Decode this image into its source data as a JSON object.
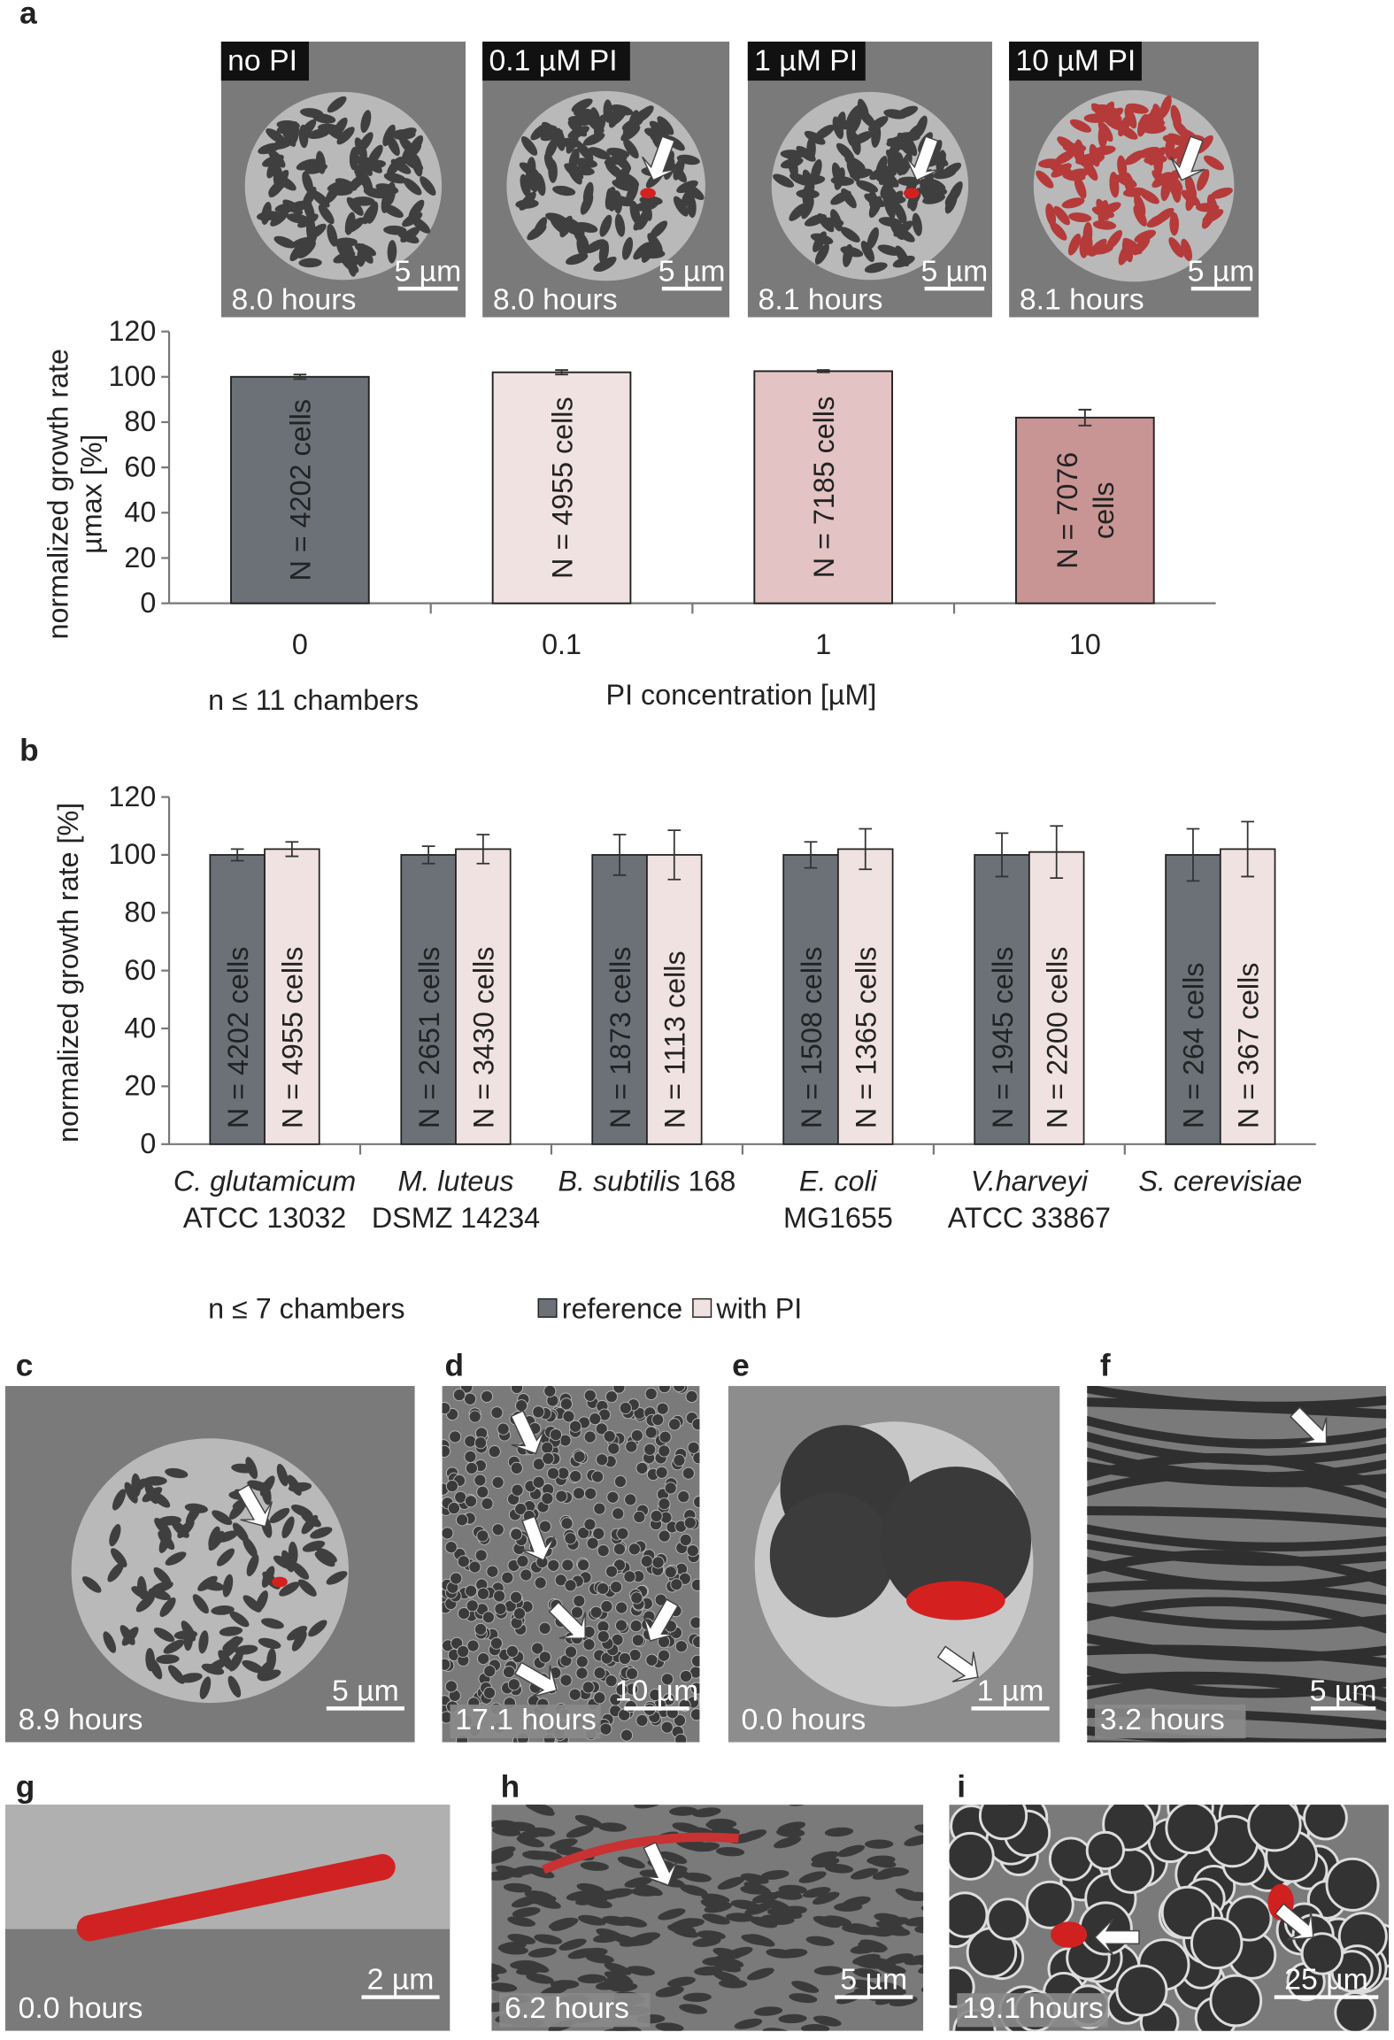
{
  "panel_labels": [
    "a",
    "b",
    "c",
    "d",
    "e",
    "f",
    "g",
    "h",
    "i"
  ],
  "images_a": [
    {
      "tag": "no PI",
      "time": "8.0 hours",
      "scale": "5 µm"
    },
    {
      "tag": "0.1 µM PI",
      "time": "8.0 hours",
      "scale": "5 µm"
    },
    {
      "tag": "1 µM PI",
      "time": "8.1 hours",
      "scale": "5 µm"
    },
    {
      "tag": "10 µM PI",
      "time": "8.1 hours",
      "scale": "5 µm"
    }
  ],
  "images": [
    {
      "time": "8.9 hours",
      "scale": "5 µm"
    },
    {
      "time": "17.1 hours",
      "scale": "10 µm"
    },
    {
      "time": "0.0 hours",
      "scale": "1 µm"
    },
    {
      "time": "3.2 hours",
      "scale": "5 µm"
    },
    {
      "time": "0.0 hours",
      "scale": "2 µm"
    },
    {
      "time": "6.2 hours",
      "scale": "5 µm"
    },
    {
      "time": "19.1 hours",
      "scale": "25 µm"
    }
  ],
  "chart_data": [
    {
      "type": "bar",
      "ylabel": [
        "normalized growth rate",
        "µmax [%]"
      ],
      "xlabel": "PI concentration [µM]",
      "note": "n ≤ 11 chambers",
      "categories": [
        "0",
        "0.1",
        "1",
        "10"
      ],
      "values": [
        100,
        102,
        102.5,
        82
      ],
      "errors": [
        1,
        1,
        0.5,
        3.5
      ],
      "colors": [
        "#6b7177",
        "#f1e2e2",
        "#e3c3c3",
        "#c99494"
      ],
      "bar_labels": [
        [
          "N = 4202 cells"
        ],
        [
          "N = 4955 cells"
        ],
        [
          "N = 7185 cells"
        ],
        [
          "N = 7076",
          "cells"
        ]
      ],
      "ylim": [
        0,
        120
      ],
      "yticks": [
        0,
        20,
        40,
        60,
        80,
        100,
        120
      ]
    },
    {
      "type": "grouped_bar",
      "ylabel": "normalized growth rate [%]",
      "note": "n ≤ 7 chambers",
      "categories": [
        {
          "species": "C. glutamicum",
          "strain": "ATCC 13032"
        },
        {
          "species": "M. luteus",
          "strain": "DSMZ 14234"
        },
        {
          "species": "B. subtilis",
          "strain": "168"
        },
        {
          "species": "E. coli",
          "strain": "MG1655"
        },
        {
          "species": "V.harveyi",
          "strain": "ATCC 33867"
        },
        {
          "species": "S. cerevisiae"
        }
      ],
      "series": [
        {
          "name": "reference",
          "color": "#6b7177",
          "values": [
            100,
            100,
            100,
            100,
            100,
            100
          ],
          "errors": [
            2,
            3,
            7,
            4.5,
            7.5,
            9
          ],
          "bar_labels": [
            "N = 4202 cells",
            "N = 2651 cells",
            "N = 1873 cells",
            "N = 1508 cells",
            "N = 1945 cells",
            "N = 264 cells"
          ]
        },
        {
          "name": "with PI",
          "color": "#f1e2e2",
          "values": [
            102,
            102,
            100,
            102,
            101,
            102
          ],
          "errors": [
            2.5,
            5,
            8.5,
            7,
            9,
            9.5
          ],
          "bar_labels": [
            "N = 4955 cells",
            "N = 3430 cells",
            "N = 1113 cells",
            "N = 1365 cells",
            "N = 2200 cells",
            "N = 367 cells"
          ]
        }
      ],
      "ylim": [
        0,
        120
      ],
      "yticks": [
        0,
        20,
        40,
        60,
        80,
        100,
        120
      ]
    }
  ]
}
